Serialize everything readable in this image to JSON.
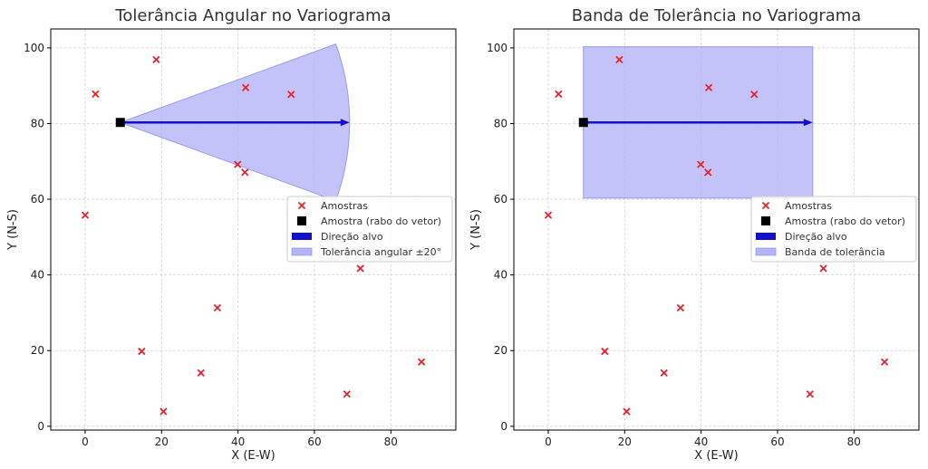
{
  "chart_data": [
    {
      "type": "scatter",
      "title": "Tolerância Angular no Variograma",
      "xlabel": "X (E-W)",
      "ylabel": "Y (N-S)",
      "xlim": [
        -9,
        97
      ],
      "ylim": [
        -1,
        105
      ],
      "xticks": [
        0,
        20,
        40,
        60,
        80
      ],
      "yticks": [
        0,
        20,
        40,
        60,
        80,
        100
      ],
      "grid": true,
      "legend_position": "center-right",
      "samples": [
        {
          "x": 2.7,
          "y": 87.8
        },
        {
          "x": 18.6,
          "y": 96.9
        },
        {
          "x": 42.0,
          "y": 89.5
        },
        {
          "x": 53.9,
          "y": 87.7
        },
        {
          "x": 39.9,
          "y": 69.2
        },
        {
          "x": 41.8,
          "y": 67.1
        },
        {
          "x": 0.0,
          "y": 55.8
        },
        {
          "x": 72.0,
          "y": 41.7
        },
        {
          "x": 34.6,
          "y": 31.3
        },
        {
          "x": 14.8,
          "y": 19.8
        },
        {
          "x": 30.3,
          "y": 14.1
        },
        {
          "x": 20.5,
          "y": 3.9
        },
        {
          "x": 68.5,
          "y": 8.5
        },
        {
          "x": 88.0,
          "y": 17.0
        }
      ],
      "tail": {
        "x": 9.2,
        "y": 80.3
      },
      "direction": {
        "dx": 60,
        "dy": 0
      },
      "tolerance": {
        "kind": "angular",
        "half_angle_deg": 20,
        "radius": 60
      },
      "legend": [
        "Amostras",
        "Amostra (rabo do vetor)",
        "Direção alvo",
        "Tolerância angular ±20°"
      ]
    },
    {
      "type": "scatter",
      "title": "Banda de Tolerância no Variograma",
      "xlabel": "X (E-W)",
      "ylabel": "Y (N-S)",
      "xlim": [
        -9,
        97
      ],
      "ylim": [
        -1,
        105
      ],
      "xticks": [
        0,
        20,
        40,
        60,
        80
      ],
      "yticks": [
        0,
        20,
        40,
        60,
        80,
        100
      ],
      "grid": true,
      "legend_position": "center-right",
      "samples": [
        {
          "x": 2.7,
          "y": 87.8
        },
        {
          "x": 18.6,
          "y": 96.9
        },
        {
          "x": 42.0,
          "y": 89.5
        },
        {
          "x": 53.9,
          "y": 87.7
        },
        {
          "x": 39.9,
          "y": 69.2
        },
        {
          "x": 41.8,
          "y": 67.1
        },
        {
          "x": 0.0,
          "y": 55.8
        },
        {
          "x": 72.0,
          "y": 41.7
        },
        {
          "x": 34.6,
          "y": 31.3
        },
        {
          "x": 14.8,
          "y": 19.8
        },
        {
          "x": 30.3,
          "y": 14.1
        },
        {
          "x": 20.5,
          "y": 3.9
        },
        {
          "x": 68.5,
          "y": 8.5
        },
        {
          "x": 88.0,
          "y": 17.0
        }
      ],
      "tail": {
        "x": 9.2,
        "y": 80.3
      },
      "direction": {
        "dx": 60,
        "dy": 0
      },
      "tolerance": {
        "kind": "band",
        "x_range": [
          9.2,
          69.2
        ],
        "y_range": [
          60.3,
          100.3
        ]
      },
      "legend": [
        "Amostras",
        "Amostra (rabo do vetor)",
        "Direção alvo",
        "Banda de tolerância"
      ]
    }
  ],
  "colors": {
    "sample": "#e8202a",
    "tail": "#000000",
    "arrow": "#1010d0",
    "tolerance_fill": "#b4b4f8",
    "tolerance_edge": "#9a9aef",
    "grid": "#d2d2d2"
  }
}
